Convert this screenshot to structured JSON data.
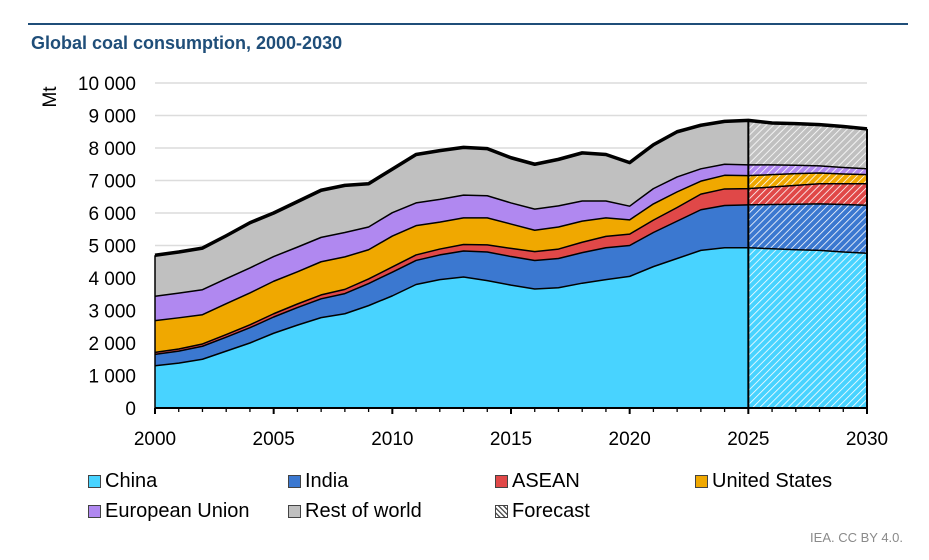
{
  "title": "Global coal consumption, 2000-2030",
  "credit": "IEA. CC BY 4.0.",
  "chart_data": {
    "type": "area",
    "stacked": true,
    "title": "Global coal consumption, 2000-2030",
    "xlabel": "",
    "ylabel": "Mt",
    "xlim": [
      2000,
      2030
    ],
    "ylim": [
      0,
      10000
    ],
    "x_ticks": [
      "2000",
      "2005",
      "2010",
      "2015",
      "2020",
      "2025",
      "2030"
    ],
    "y_ticks": [
      "0",
      "1 000",
      "2 000",
      "3 000",
      "4 000",
      "5 000",
      "6 000",
      "7 000",
      "8 000",
      "9 000",
      "10 000"
    ],
    "grid": true,
    "forecast_start": 2025,
    "x": [
      2000,
      2001,
      2002,
      2003,
      2004,
      2005,
      2006,
      2007,
      2008,
      2009,
      2010,
      2011,
      2012,
      2013,
      2014,
      2015,
      2016,
      2017,
      2018,
      2019,
      2020,
      2021,
      2022,
      2023,
      2024,
      2025,
      2026,
      2027,
      2028,
      2029,
      2030
    ],
    "series": [
      {
        "name": "China",
        "color": "#48d3ff",
        "values": [
          1300,
          1380,
          1500,
          1750,
          2000,
          2300,
          2550,
          2780,
          2900,
          3150,
          3450,
          3800,
          3950,
          4030,
          3920,
          3780,
          3660,
          3700,
          3840,
          3950,
          4050,
          4350,
          4600,
          4850,
          4930,
          4930,
          4900,
          4870,
          4850,
          4800,
          4760
        ]
      },
      {
        "name": "India",
        "color": "#3b78d0",
        "values": [
          350,
          370,
          400,
          430,
          470,
          500,
          540,
          580,
          620,
          680,
          730,
          740,
          760,
          800,
          880,
          880,
          880,
          900,
          940,
          980,
          950,
          1050,
          1150,
          1250,
          1300,
          1320,
          1360,
          1400,
          1430,
          1460,
          1480
        ]
      },
      {
        "name": "ASEAN",
        "color": "#e04848",
        "values": [
          60,
          65,
          70,
          80,
          90,
          100,
          110,
          120,
          130,
          140,
          160,
          170,
          180,
          200,
          220,
          250,
          270,
          290,
          320,
          350,
          350,
          380,
          420,
          480,
          510,
          500,
          540,
          580,
          620,
          640,
          660
        ]
      },
      {
        "name": "United States",
        "color": "#f0a800",
        "values": [
          980,
          960,
          900,
          950,
          980,
          1000,
          990,
          1020,
          1000,
          900,
          950,
          900,
          830,
          820,
          830,
          750,
          660,
          680,
          650,
          570,
          440,
          500,
          480,
          400,
          420,
          400,
          380,
          360,
          330,
          300,
          280
        ]
      },
      {
        "name": "European Union",
        "color": "#b088f0",
        "values": [
          750,
          760,
          770,
          770,
          770,
          760,
          760,
          750,
          750,
          700,
          720,
          700,
          700,
          700,
          680,
          650,
          650,
          650,
          620,
          520,
          420,
          470,
          460,
          380,
          340,
          330,
          300,
          260,
          220,
          200,
          180
        ]
      },
      {
        "name": "Rest of world",
        "color": "#c0c0c0",
        "values": [
          1260,
          1265,
          1280,
          1320,
          1390,
          1340,
          1400,
          1450,
          1450,
          1330,
          1340,
          1490,
          1500,
          1470,
          1450,
          1390,
          1380,
          1430,
          1480,
          1430,
          1340,
          1350,
          1390,
          1340,
          1320,
          1370,
          1290,
          1280,
          1270,
          1260,
          1230
        ]
      }
    ],
    "legend": [
      "China",
      "India",
      "ASEAN",
      "United States",
      "European Union",
      "Rest of world",
      "Forecast"
    ],
    "legend_placement": "bottom"
  }
}
